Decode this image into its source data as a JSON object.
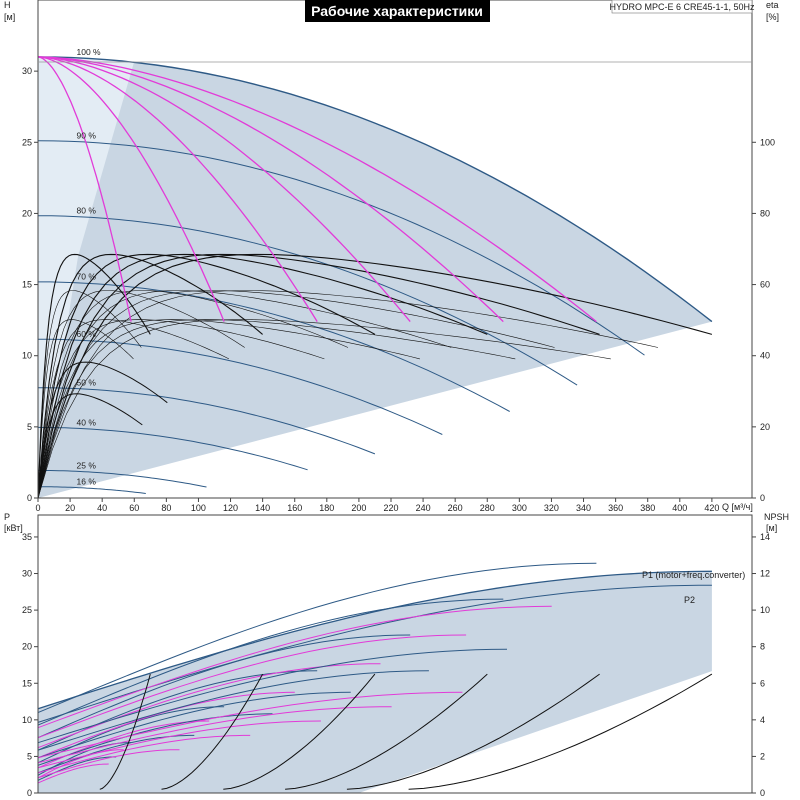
{
  "title": "Рабочие характеристики",
  "model": "HYDRO MPC-E 6 CRE45-1-1, 50Hz",
  "colors": {
    "envelope": "#c9d6e3",
    "envelope_light": "#e3ecf4",
    "speed_curve": "#2e5a86",
    "pump_curve": "#111111",
    "efficiency": "#e23bd8",
    "frame": "#444444"
  },
  "chart_data": [
    {
      "type": "line",
      "name": "head",
      "xlabel": "Q [м³/ч]",
      "ylabel": "H",
      "ylabel_unit": "[м]",
      "y2label": "eta",
      "y2label_unit": "[%]",
      "xlim": [
        0,
        445
      ],
      "ylim": [
        0,
        35
      ],
      "y2lim": [
        0,
        140
      ],
      "xticks": [
        0,
        20,
        40,
        60,
        80,
        100,
        120,
        140,
        160,
        180,
        200,
        220,
        240,
        260,
        280,
        300,
        320,
        340,
        360,
        380,
        400,
        420
      ],
      "yticks": [
        0,
        5,
        10,
        15,
        20,
        25,
        30
      ],
      "y2ticks": [
        0,
        20,
        40,
        60,
        80,
        100
      ],
      "grid": false,
      "speed_labels": [
        "100 %",
        "90 %",
        "80 %",
        "70 %",
        "60 %",
        "50 %",
        "40 %",
        "25 %",
        "16 %"
      ],
      "speed_fractions": [
        1.0,
        0.9,
        0.8,
        0.7,
        0.6,
        0.5,
        0.4,
        0.25,
        0.16
      ],
      "envelope": {
        "shutoff_head": 31,
        "max_flow": 420,
        "head_at_max_flow": 12.4,
        "min_flow": 0
      },
      "pump_counts": [
        1,
        2,
        3,
        4,
        5,
        6
      ],
      "single_pump_max_flow": 70,
      "single_pump_end_head": 11.5
    },
    {
      "type": "line",
      "name": "power",
      "ylabel": "P",
      "ylabel_unit": "[кВт]",
      "y2label": "NPSH",
      "y2label_unit": "[м]",
      "xlim": [
        0,
        445
      ],
      "ylim": [
        0,
        38
      ],
      "y2lim": [
        0,
        15.2
      ],
      "yticks": [
        0,
        5,
        10,
        15,
        20,
        25,
        30,
        35
      ],
      "y2ticks": [
        0,
        2,
        4,
        6,
        8,
        10,
        12,
        14
      ],
      "series_labels": [
        "P1 (motor+freq.converter)",
        "P2"
      ],
      "p1_max": 30.3,
      "p2_max": 28.4,
      "npsh_max": 6.3
    }
  ]
}
